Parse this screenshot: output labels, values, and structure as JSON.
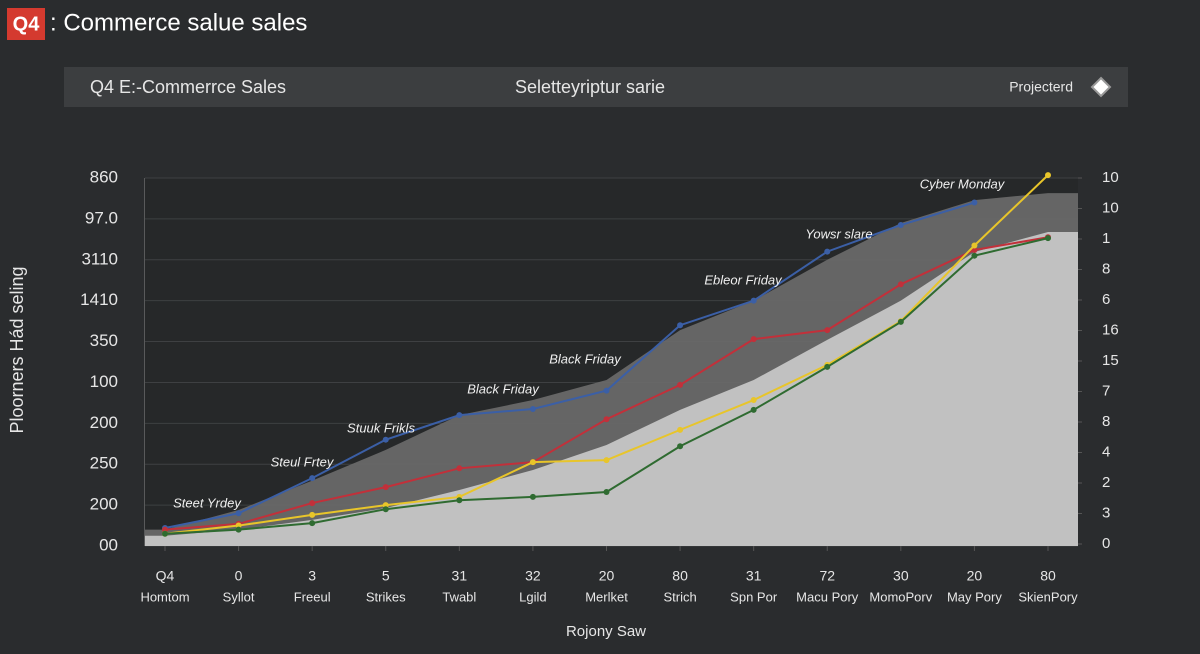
{
  "header": {
    "badge": "Q4",
    "title": ": Commerce salue sales",
    "bar_left": "Q4 E:-Commerrce Sales",
    "bar_center": "Seletteyriptur sarie",
    "bar_right": "Projecterd"
  },
  "chart_data": {
    "type": "line",
    "y_label": "Ploorners Hád seling",
    "x_label": "Rojony Saw",
    "categories": [
      "Q4",
      "0",
      "3",
      "5",
      "31",
      "32",
      "20",
      "80",
      "31",
      "72",
      "30",
      "20",
      "80"
    ],
    "category_names": [
      "Homtom",
      "Syllot",
      "Freeul",
      "Strikes",
      "Twabl",
      "Lgild",
      "Merlket",
      "Strich",
      "Spn Por",
      "Macu Pory",
      "MomoPorv",
      "May Pory",
      "SkienPory"
    ],
    "ylim": [
      0,
      9
    ],
    "yticks": [
      {
        "value": 0,
        "label": "00"
      },
      {
        "value": 1,
        "label": "200"
      },
      {
        "value": 2,
        "label": "250"
      },
      {
        "value": 3,
        "label": "200"
      },
      {
        "value": 4,
        "label": "100"
      },
      {
        "value": 5,
        "label": "350"
      },
      {
        "value": 6,
        "label": "1410"
      },
      {
        "value": 7,
        "label": "3110"
      },
      {
        "value": 8,
        "label": "97.0"
      },
      {
        "value": 9,
        "label": "860"
      }
    ],
    "y2lim": [
      0,
      12
    ],
    "y2ticks": [
      {
        "value": 0,
        "label": "0"
      },
      {
        "value": 1,
        "label": "3"
      },
      {
        "value": 2,
        "label": "2"
      },
      {
        "value": 3,
        "label": "4"
      },
      {
        "value": 4,
        "label": "8"
      },
      {
        "value": 5,
        "label": "7"
      },
      {
        "value": 6,
        "label": "15"
      },
      {
        "value": 7,
        "label": "16"
      },
      {
        "value": 8,
        "label": "6"
      },
      {
        "value": 9,
        "label": "8"
      },
      {
        "value": 10,
        "label": "1"
      },
      {
        "value": 11,
        "label": "10"
      },
      {
        "value": 12,
        "label": "10"
      }
    ],
    "grid": true,
    "series": [
      {
        "type": "area",
        "color": "#6a6a6a",
        "values": [
          0.4,
          0.88,
          1.6,
          2.35,
          3.2,
          3.57,
          4.06,
          5.28,
          6.0,
          7.0,
          7.9,
          8.46,
          8.63
        ]
      },
      {
        "type": "area",
        "color": "#c9c9c9",
        "values": [
          0.25,
          0.4,
          0.64,
          0.93,
          1.37,
          1.86,
          2.47,
          3.33,
          4.06,
          5.04,
          6.0,
          7.19,
          7.68
        ]
      },
      {
        "type": "line",
        "color": "#3b5fa6",
        "values": [
          0.44,
          0.8,
          1.66,
          2.6,
          3.2,
          3.35,
          3.8,
          5.4,
          6.0,
          7.2,
          7.85,
          8.4,
          null
        ]
      },
      {
        "type": "line",
        "color": "#c2303a",
        "values": [
          0.4,
          0.54,
          1.05,
          1.44,
          1.9,
          2.05,
          3.1,
          3.94,
          5.06,
          5.28,
          6.4,
          7.24,
          7.55
        ]
      },
      {
        "type": "line",
        "color": "#e8c52a",
        "values": [
          0.3,
          0.5,
          0.76,
          1.0,
          1.2,
          2.05,
          2.1,
          2.84,
          3.57,
          4.43,
          5.5,
          7.35,
          9.07
        ]
      },
      {
        "type": "line",
        "color": "#2f6b31",
        "values": [
          0.3,
          0.4,
          0.56,
          0.9,
          1.12,
          1.2,
          1.32,
          2.44,
          3.33,
          4.38,
          5.48,
          7.1,
          7.53
        ]
      }
    ],
    "annotations": [
      "Cyber Monday",
      "Yowsr slare",
      "Ebleor Friday",
      "Black Friday",
      "Black Friday",
      "Stuuk Frikls",
      "Steul Frtey",
      "Steet Yrdey"
    ]
  }
}
